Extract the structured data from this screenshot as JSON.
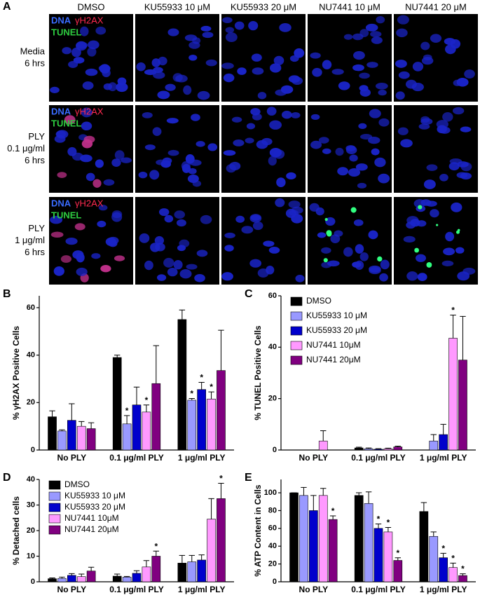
{
  "panel_a": {
    "panel": "A",
    "columns": [
      "DMSO",
      "KU55933 10 μM",
      "KU55933 20 μM",
      "NU7441 10 μM",
      "NU7441 20 μM"
    ],
    "stains": [
      "DNA",
      "γH2AX",
      "TUNEL"
    ],
    "rows": [
      {
        "label": [
          "Media",
          "6 hrs"
        ]
      },
      {
        "label": [
          "PLY",
          "0.1 μg/ml",
          "6 hrs"
        ]
      },
      {
        "label": [
          "PLY",
          "1 μg/ml",
          "6 hrs"
        ]
      }
    ]
  },
  "chart_data": [
    {
      "type": "bar",
      "panel": "B",
      "ylabel": "% γH2AX Positive Cells",
      "categories": [
        "No PLY",
        "0.1 μg/ml PLY",
        "1 μg/ml PLY"
      ],
      "ylim": [
        0,
        65
      ],
      "yticks": [
        0,
        20,
        40,
        60
      ],
      "series": [
        {
          "color": "#000000",
          "values": [
            14,
            39,
            55
          ],
          "errors": [
            2.5,
            1,
            4
          ],
          "sig": [
            null,
            null,
            null
          ]
        },
        {
          "color": "#9999ff",
          "values": [
            8,
            11,
            21
          ],
          "errors": [
            0.5,
            3.5,
            0.7
          ],
          "sig": [
            null,
            "*",
            "*"
          ]
        },
        {
          "color": "#0000cc",
          "values": [
            12.5,
            19,
            25.5
          ],
          "errors": [
            7,
            7.5,
            3
          ],
          "sig": [
            null,
            null,
            "*"
          ]
        },
        {
          "color": "#ff99ff",
          "values": [
            10,
            16,
            21.5
          ],
          "errors": [
            2,
            3,
            3
          ],
          "sig": [
            null,
            "*",
            "*"
          ]
        },
        {
          "color": "#800080",
          "values": [
            9,
            28,
            33.5
          ],
          "errors": [
            2.5,
            16,
            17
          ],
          "sig": [
            null,
            null,
            null
          ]
        }
      ]
    },
    {
      "type": "bar",
      "panel": "C",
      "ylabel": "% TUNEL Positive Cells",
      "categories": [
        "No PLY",
        "0.1 μg/ml PLY",
        "1 μg/ml PLY"
      ],
      "ylim": [
        0,
        60
      ],
      "yticks": [
        0,
        20,
        40,
        60
      ],
      "legend": "upper left",
      "series": [
        {
          "name": "DMSO",
          "color": "#000000",
          "values": [
            0,
            0.8,
            0
          ],
          "errors": [
            0,
            0.3,
            0
          ],
          "sig": [
            null,
            null,
            null
          ]
        },
        {
          "name": "KU55933 10 μM",
          "color": "#9999ff",
          "values": [
            0,
            0.5,
            3.5
          ],
          "errors": [
            0,
            0.3,
            2.5
          ],
          "sig": [
            null,
            null,
            null
          ]
        },
        {
          "name": "KU55933 20 μM",
          "color": "#0000cc",
          "values": [
            0,
            0.3,
            6
          ],
          "errors": [
            0,
            0.2,
            4
          ],
          "sig": [
            null,
            null,
            null
          ]
        },
        {
          "name": "NU7441 10μM",
          "color": "#ff99ff",
          "values": [
            3.5,
            0.5,
            43.5
          ],
          "errors": [
            4,
            0.2,
            9
          ],
          "sig": [
            null,
            null,
            "*"
          ]
        },
        {
          "name": "NU7441 20μM",
          "color": "#800080",
          "values": [
            0,
            1.2,
            35
          ],
          "errors": [
            0,
            0.3,
            17
          ],
          "sig": [
            null,
            null,
            null
          ]
        }
      ]
    },
    {
      "type": "bar",
      "panel": "D",
      "ylabel": "% Detached cells",
      "categories": [
        "No PLY",
        "0.1 μg/ml PLY",
        "1 μg/ml PLY"
      ],
      "ylim": [
        0,
        40
      ],
      "yticks": [
        0,
        10,
        20,
        30,
        40
      ],
      "legend": "upper left",
      "series": [
        {
          "name": "DMSO",
          "color": "#000000",
          "values": [
            1.2,
            2.2,
            7.3
          ],
          "errors": [
            0.3,
            0.8,
            3
          ],
          "sig": [
            null,
            null,
            null
          ]
        },
        {
          "name": "KU55933 10 μM",
          "color": "#9999ff",
          "values": [
            1.3,
            1.8,
            7.8
          ],
          "errors": [
            0.5,
            0.3,
            2.5
          ],
          "sig": [
            null,
            null,
            null
          ]
        },
        {
          "name": "KU55933 20 μM",
          "color": "#0000cc",
          "values": [
            2.5,
            3.3,
            8.5
          ],
          "errors": [
            0.7,
            1,
            2
          ],
          "sig": [
            null,
            null,
            null
          ]
        },
        {
          "name": "NU7441 10μM",
          "color": "#ff99ff",
          "values": [
            2,
            5.8,
            24.5
          ],
          "errors": [
            1,
            2.5,
            8
          ],
          "sig": [
            null,
            null,
            null
          ]
        },
        {
          "name": "NU7441 20μM",
          "color": "#800080",
          "values": [
            4.2,
            10,
            32.5
          ],
          "errors": [
            1.5,
            2,
            6
          ],
          "sig": [
            null,
            "*",
            "*"
          ]
        }
      ]
    },
    {
      "type": "bar",
      "panel": "E",
      "ylabel": "% ATP Content in Cells",
      "categories": [
        "No PLY",
        "0.1 μg/ml PLY",
        "1 μg/ml PLY"
      ],
      "ylim": [
        0,
        115
      ],
      "yticks": [
        0,
        20,
        40,
        60,
        80,
        100
      ],
      "series": [
        {
          "color": "#000000",
          "values": [
            100,
            97,
            79
          ],
          "errors": [
            0,
            3,
            10
          ],
          "sig": [
            null,
            null,
            null
          ]
        },
        {
          "color": "#9999ff",
          "values": [
            97,
            88,
            51
          ],
          "errors": [
            9,
            13,
            5
          ],
          "sig": [
            null,
            null,
            null
          ]
        },
        {
          "color": "#0000cc",
          "values": [
            80,
            60,
            27
          ],
          "errors": [
            17,
            5,
            5
          ],
          "sig": [
            null,
            "*",
            "*"
          ]
        },
        {
          "color": "#ff99ff",
          "values": [
            97,
            56,
            16
          ],
          "errors": [
            8,
            5,
            5
          ],
          "sig": [
            null,
            "*",
            "*"
          ]
        },
        {
          "color": "#800080",
          "values": [
            70,
            24,
            7
          ],
          "errors": [
            4,
            3,
            2
          ],
          "sig": [
            "*",
            "*",
            "*"
          ]
        }
      ]
    }
  ]
}
